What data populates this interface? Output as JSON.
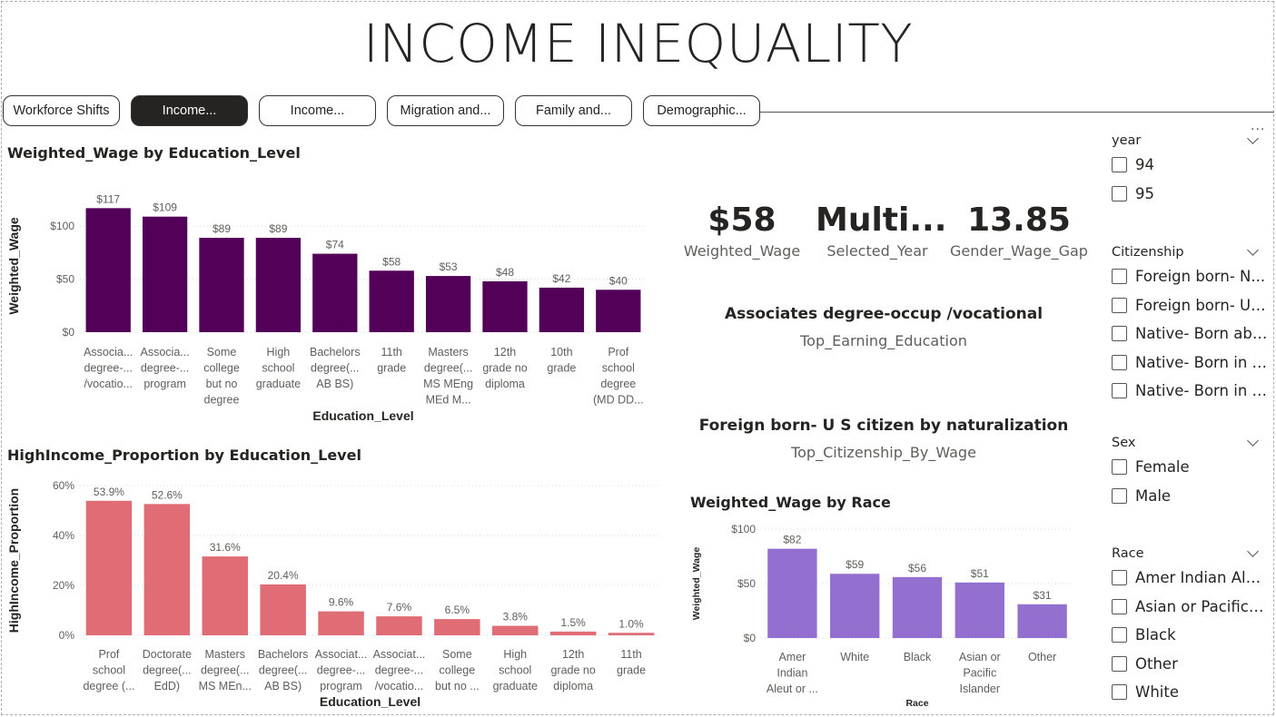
{
  "page_title": "INCOME INEQUALITY",
  "tabs": [
    {
      "label": "Workforce Shifts",
      "active": false
    },
    {
      "label": "Income...",
      "active": true
    },
    {
      "label": "Income...",
      "active": false
    },
    {
      "label": "Migration and...",
      "active": false
    },
    {
      "label": "Family and...",
      "active": false
    },
    {
      "label": "Demographic...",
      "active": false
    }
  ],
  "more_options": "...",
  "charts": {
    "wage_by_education": {
      "title": "Weighted_Wage by Education_Level",
      "chart_data": {
        "type": "bar",
        "categories": [
          [
            "Associa...",
            "degree-...",
            "/vocatio..."
          ],
          [
            "Associa...",
            "degree-...",
            "program"
          ],
          [
            "Some",
            "college",
            "but no",
            "degree"
          ],
          [
            "High",
            "school",
            "graduate"
          ],
          [
            "Bachelors",
            "degree(...",
            "AB BS)"
          ],
          [
            "11th",
            "grade"
          ],
          [
            "Masters",
            "degree(...",
            "MS MEng",
            "MEd M..."
          ],
          [
            "12th",
            "grade no",
            "diploma"
          ],
          [
            "10th",
            "grade"
          ],
          [
            "Prof",
            "school",
            "degree",
            "(MD DD..."
          ]
        ],
        "values": [
          117,
          109,
          89,
          89,
          74,
          58,
          53,
          48,
          42,
          40
        ],
        "data_labels": [
          "$117",
          "$109",
          "$89",
          "$89",
          "$74",
          "$58",
          "$53",
          "$48",
          "$42",
          "$40"
        ],
        "yticks": [
          0,
          50,
          100
        ],
        "ytick_labels": [
          "$0",
          "$50",
          "$100"
        ],
        "ylim": [
          0,
          125
        ],
        "xlabel": "Education_Level",
        "ylabel": "Weighted_Wage",
        "color": "#520058"
      }
    },
    "highincome_by_education": {
      "title": "HighIncome_Proportion by Education_Level",
      "chart_data": {
        "type": "bar",
        "categories": [
          [
            "Prof",
            "school",
            "degree (..."
          ],
          [
            "Doctorate",
            "degree(...",
            "EdD)"
          ],
          [
            "Masters",
            "degree(...",
            "MS MEn..."
          ],
          [
            "Bachelors",
            "degree(...",
            "AB BS)"
          ],
          [
            "Associat...",
            "degree-...",
            "program"
          ],
          [
            "Associat...",
            "degree-...",
            "/vocatio..."
          ],
          [
            "Some",
            "college",
            "but no ..."
          ],
          [
            "High",
            "school",
            "graduate"
          ],
          [
            "12th",
            "grade no",
            "diploma"
          ],
          [
            "11th",
            "grade"
          ]
        ],
        "values": [
          53.9,
          52.6,
          31.6,
          20.4,
          9.6,
          7.6,
          6.5,
          3.8,
          1.5,
          1.0
        ],
        "data_labels": [
          "53.9%",
          "52.6%",
          "31.6%",
          "20.4%",
          "9.6%",
          "7.6%",
          "6.5%",
          "3.8%",
          "1.5%",
          "1.0%"
        ],
        "yticks": [
          0,
          20,
          40,
          60
        ],
        "ytick_labels": [
          "0%",
          "20%",
          "40%",
          "60%"
        ],
        "ylim": [
          0,
          60
        ],
        "xlabel": "Education_Level",
        "ylabel": "HighIncome_Proportion",
        "color": "#e06c75"
      }
    },
    "wage_by_race": {
      "title": "Weighted_Wage by Race",
      "chart_data": {
        "type": "bar",
        "categories": [
          [
            "Amer",
            "Indian",
            "Aleut or ..."
          ],
          [
            "White"
          ],
          [
            "Black"
          ],
          [
            "Asian or",
            "Pacific",
            "Islander"
          ],
          [
            "Other"
          ]
        ],
        "values": [
          82,
          59,
          56,
          51,
          31
        ],
        "data_labels": [
          "$82",
          "$59",
          "$56",
          "$51",
          "$31"
        ],
        "yticks": [
          0,
          50,
          100
        ],
        "ytick_labels": [
          "$0",
          "$50",
          "$100"
        ],
        "ylim": [
          0,
          100
        ],
        "xlabel": "Race",
        "ylabel": "Weighted_Wage",
        "color": "#9370d0"
      }
    }
  },
  "kpis": [
    {
      "value": "$58",
      "label": "Weighted_Wage"
    },
    {
      "value": "Multi...",
      "label": "Selected_Year"
    },
    {
      "value": "13.85",
      "label": "Gender_Wage_Gap"
    }
  ],
  "top_education": {
    "value": "Associates degree-occup /vocational",
    "label": "Top_Earning_Education"
  },
  "top_citizenship": {
    "value": "Foreign born- U S citizen by naturalization",
    "label": "Top_Citizenship_By_Wage"
  },
  "slicers": [
    {
      "title": "year",
      "options": [
        "94",
        "95"
      ]
    },
    {
      "title": "Citizenship",
      "options": [
        "Foreign born- N...",
        "Foreign born- U ...",
        "Native- Born abr...",
        "Native- Born in P...",
        "Native- Born in t..."
      ]
    },
    {
      "title": "Sex",
      "options": [
        "Female",
        "Male"
      ]
    },
    {
      "title": "Race",
      "options": [
        "Amer Indian Aleu...",
        "Asian or Pacific Is...",
        "Black",
        "Other",
        "White"
      ]
    }
  ]
}
